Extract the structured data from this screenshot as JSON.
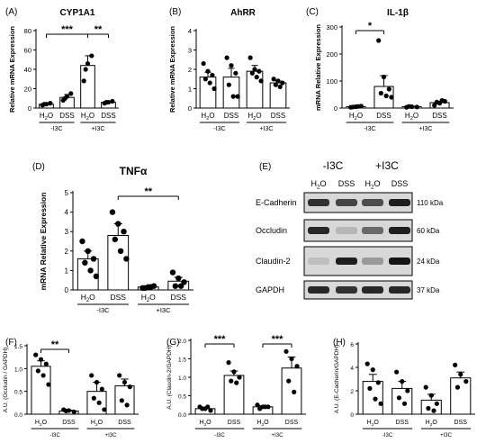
{
  "chart_data": [
    {
      "type": "bar",
      "panel": "(A)",
      "title": "CYP1A1",
      "ylabel": "Relative mRNA Expression",
      "ylim": [
        0,
        80
      ],
      "yticks": [
        0,
        20,
        40,
        60,
        80
      ],
      "categories": [
        "H2O",
        "DSS",
        "H2O",
        "DSS"
      ],
      "groups": [
        {
          "label": "-I3C",
          "categories": [
            "H2O",
            "DSS"
          ]
        },
        {
          "label": "+I3C",
          "categories": [
            "H2O",
            "DSS"
          ]
        }
      ],
      "values": [
        4,
        11,
        44,
        6
      ],
      "errors": [
        1,
        3,
        10,
        1
      ],
      "points": [
        [
          3,
          4,
          5,
          4
        ],
        [
          8,
          12,
          15,
          10
        ],
        [
          28,
          46,
          54,
          40
        ],
        [
          5,
          6,
          7,
          6
        ]
      ],
      "annotations": [
        {
          "text": "***",
          "from": 0,
          "to": 2
        },
        {
          "text": "**",
          "from": 2,
          "to": 3
        }
      ]
    },
    {
      "type": "bar",
      "panel": "(B)",
      "title": "AhRR",
      "ylabel": "Relative mRNA Expression",
      "ylim": [
        0,
        4
      ],
      "yticks": [
        0,
        1,
        2,
        3,
        4
      ],
      "categories": [
        "H2O",
        "DSS",
        "H2O",
        "DSS"
      ],
      "groups": [
        {
          "label": "-I3C",
          "categories": [
            "H2O",
            "DSS"
          ]
        },
        {
          "label": "+I3C",
          "categories": [
            "H2O",
            "DSS"
          ]
        }
      ],
      "values": [
        1.6,
        1.6,
        1.9,
        1.3
      ],
      "errors": [
        0.25,
        0.45,
        0.3,
        0.1
      ],
      "points": [
        [
          2.3,
          1.9,
          1.7,
          1.5,
          1.3,
          1.0
        ],
        [
          2.6,
          2.2,
          1.8,
          1.2,
          0.6,
          0.6
        ],
        [
          2.6,
          2.0,
          1.9,
          1.8,
          1.6,
          1.4
        ],
        [
          1.5,
          1.4,
          1.3,
          1.2,
          1.1
        ]
      ],
      "annotations": []
    },
    {
      "type": "bar",
      "panel": "(C)",
      "title": "IL-1β",
      "ylabel": "mRNA Relative Expression",
      "ylim": [
        0,
        300
      ],
      "yticks": [
        0,
        100,
        200,
        300
      ],
      "categories": [
        "H2O",
        "DSS",
        "H2O",
        "DSS"
      ],
      "groups": [
        {
          "label": "-I3C",
          "categories": [
            "H2O",
            "DSS"
          ]
        },
        {
          "label": "+I3C",
          "categories": [
            "H2O",
            "DSS"
          ]
        }
      ],
      "values": [
        5,
        80,
        5,
        20
      ],
      "errors": [
        2,
        40,
        2,
        5
      ],
      "points": [
        [
          3,
          5,
          7,
          4,
          6
        ],
        [
          250,
          115,
          70,
          55,
          45,
          40
        ],
        [
          3,
          5,
          4,
          6
        ],
        [
          10,
          18,
          25,
          22,
          28
        ]
      ],
      "annotations": [
        {
          "text": "*",
          "from": 0,
          "to": 1
        }
      ]
    },
    {
      "type": "bar",
      "panel": "(D)",
      "title": "TNFα",
      "ylabel": "mRNA Relative Expression",
      "ylim": [
        0,
        5
      ],
      "yticks": [
        0,
        1,
        2,
        3,
        4,
        5
      ],
      "categories": [
        "H2O",
        "DSS",
        "H2O",
        "DSS"
      ],
      "groups": [
        {
          "label": "-I3C",
          "categories": [
            "H2O",
            "DSS"
          ]
        },
        {
          "label": "+I3C",
          "categories": [
            "H2O",
            "DSS"
          ]
        }
      ],
      "values": [
        1.6,
        2.8,
        0.15,
        0.45
      ],
      "errors": [
        0.4,
        0.6,
        0.05,
        0.2
      ],
      "points": [
        [
          2.5,
          2.0,
          1.6,
          1.4,
          1.0,
          0.7
        ],
        [
          4.0,
          3.4,
          3.0,
          2.6,
          2.0,
          1.6
        ],
        [
          0.1,
          0.15,
          0.2,
          0.1,
          0.15
        ],
        [
          0.9,
          0.6,
          0.4,
          0.2,
          0.2
        ]
      ],
      "annotations": [
        {
          "text": "**",
          "from": 1,
          "to": 3
        }
      ]
    },
    {
      "type": "bar",
      "panel": "(F)",
      "title": "",
      "ylabel": "A.U. (Occludin / GAPDH)",
      "ylim": [
        0,
        1.5
      ],
      "yticks": [
        0.0,
        0.5,
        1.0,
        1.5
      ],
      "categories": [
        "H2O",
        "DSS",
        "H2O",
        "DSS"
      ],
      "groups": [
        {
          "label": "-I3C",
          "categories": [
            "H2O",
            "DSS"
          ]
        },
        {
          "label": "+I3C",
          "categories": [
            "H2O",
            "DSS"
          ]
        }
      ],
      "values": [
        1.05,
        0.07,
        0.5,
        0.62
      ],
      "errors": [
        0.12,
        0.02,
        0.2,
        0.15
      ],
      "points": [
        [
          1.3,
          1.2,
          1.1,
          0.95,
          0.85,
          0.65
        ],
        [
          0.1,
          0.08,
          0.05,
          0.07
        ],
        [
          0.85,
          0.7,
          0.55,
          0.35,
          0.25,
          0.1
        ],
        [
          0.85,
          0.7,
          0.6,
          0.3,
          0.2
        ]
      ],
      "annotations": [
        {
          "text": "**",
          "from": 0,
          "to": 1
        }
      ]
    },
    {
      "type": "bar",
      "panel": "(G)",
      "title": "",
      "ylabel": "A.U. (Claudin-2/GAPDH)",
      "ylim": [
        0,
        2.0
      ],
      "yticks": [
        0.0,
        0.5,
        1.0,
        1.5,
        2.0
      ],
      "categories": [
        "H2O",
        "DSS",
        "H2O",
        "DSS"
      ],
      "groups": [
        {
          "label": "-I3C",
          "categories": [
            "H2O",
            "DSS"
          ]
        },
        {
          "label": "+I3C",
          "categories": [
            "H2O",
            "DSS"
          ]
        }
      ],
      "values": [
        0.15,
        1.05,
        0.2,
        1.25
      ],
      "errors": [
        0.03,
        0.12,
        0.03,
        0.3
      ],
      "points": [
        [
          0.2,
          0.15,
          0.1,
          0.15,
          0.2
        ],
        [
          1.4,
          1.15,
          1.0,
          0.9,
          0.85
        ],
        [
          0.25,
          0.2,
          0.2,
          0.15,
          0.2
        ],
        [
          1.7,
          1.5,
          1.3,
          0.9,
          0.6
        ]
      ],
      "annotations": [
        {
          "text": "***",
          "from": 0,
          "to": 1
        },
        {
          "text": "***",
          "from": 2,
          "to": 3
        }
      ]
    },
    {
      "type": "bar",
      "panel": "(H)",
      "title": "",
      "ylabel": "A.U. (E-Cadherin/GAPDH)",
      "ylim": [
        0,
        6
      ],
      "yticks": [
        0,
        2,
        4,
        6
      ],
      "categories": [
        "H2O",
        "DSS",
        "H2O",
        "DSS"
      ],
      "groups": [
        {
          "label": "-I3C",
          "categories": [
            "H2O",
            "DSS"
          ]
        },
        {
          "label": "+I3C",
          "categories": [
            "H2O",
            "DSS"
          ]
        }
      ],
      "values": [
        2.8,
        2.2,
        1.2,
        3.1
      ],
      "errors": [
        0.6,
        0.6,
        0.5,
        0.5
      ],
      "points": [
        [
          4.3,
          3.8,
          2.7,
          2.2,
          1.3,
          0.9
        ],
        [
          3.6,
          2.8,
          2.0,
          1.4,
          0.9
        ],
        [
          2.3,
          1.6,
          0.9,
          0.5,
          0.3
        ],
        [
          4.2,
          3.4,
          2.8,
          2.3
        ]
      ],
      "annotations": []
    }
  ],
  "blot": {
    "panel": "(E)",
    "groups": [
      "-I3C",
      "+I3C"
    ],
    "lanes": [
      "H2O",
      "DSS",
      "H2O",
      "DSS"
    ],
    "rows": [
      {
        "protein": "E-Cadherin",
        "kda": "110 kDa",
        "intensity": [
          0.85,
          0.75,
          0.7,
          0.95
        ]
      },
      {
        "protein": "Occludin",
        "kda": "60 kDa",
        "intensity": [
          0.9,
          0.15,
          0.55,
          0.95
        ]
      },
      {
        "protein": "Claudin-2",
        "kda": "24 kDa",
        "intensity": [
          0.1,
          0.95,
          0.3,
          1.0
        ]
      },
      {
        "protein": "GAPDH",
        "kda": "37 kDa",
        "intensity": [
          0.9,
          0.85,
          0.9,
          0.9
        ]
      }
    ]
  }
}
